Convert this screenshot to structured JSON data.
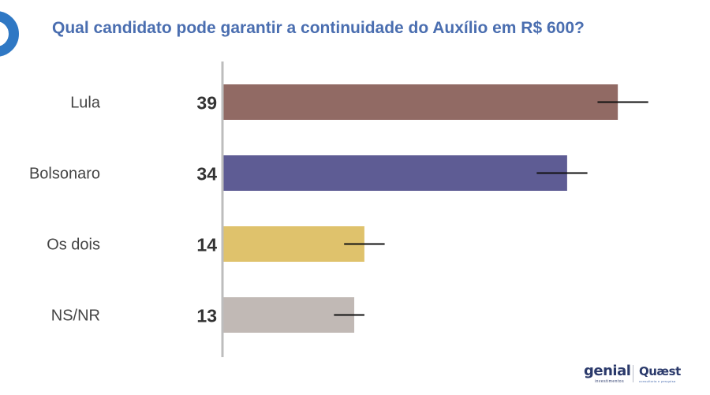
{
  "chart_data": {
    "type": "bar",
    "orientation": "horizontal",
    "title": "Qual candidato pode garantir a continuidade do Auxílio em R$ 600?",
    "categories": [
      "Lula",
      "Bolsonaro",
      "Os dois",
      "NS/NR"
    ],
    "values": [
      39,
      34,
      14,
      13
    ],
    "value_labels": [
      "39",
      "34",
      "14",
      "13"
    ],
    "error_bars": [
      [
        37,
        42
      ],
      [
        31,
        36
      ],
      [
        12,
        16
      ],
      [
        11,
        14
      ]
    ],
    "colors": [
      "#916a64",
      "#5e5c94",
      "#dfc26c",
      "#c1b9b5"
    ],
    "xlim": [
      0,
      50
    ],
    "grid": false,
    "legend": "none"
  },
  "logos": {
    "genial": "genial",
    "genial_sub": "investimentos",
    "quaest": "Quæst",
    "quaest_sub": "consultoria e pesquisa"
  }
}
